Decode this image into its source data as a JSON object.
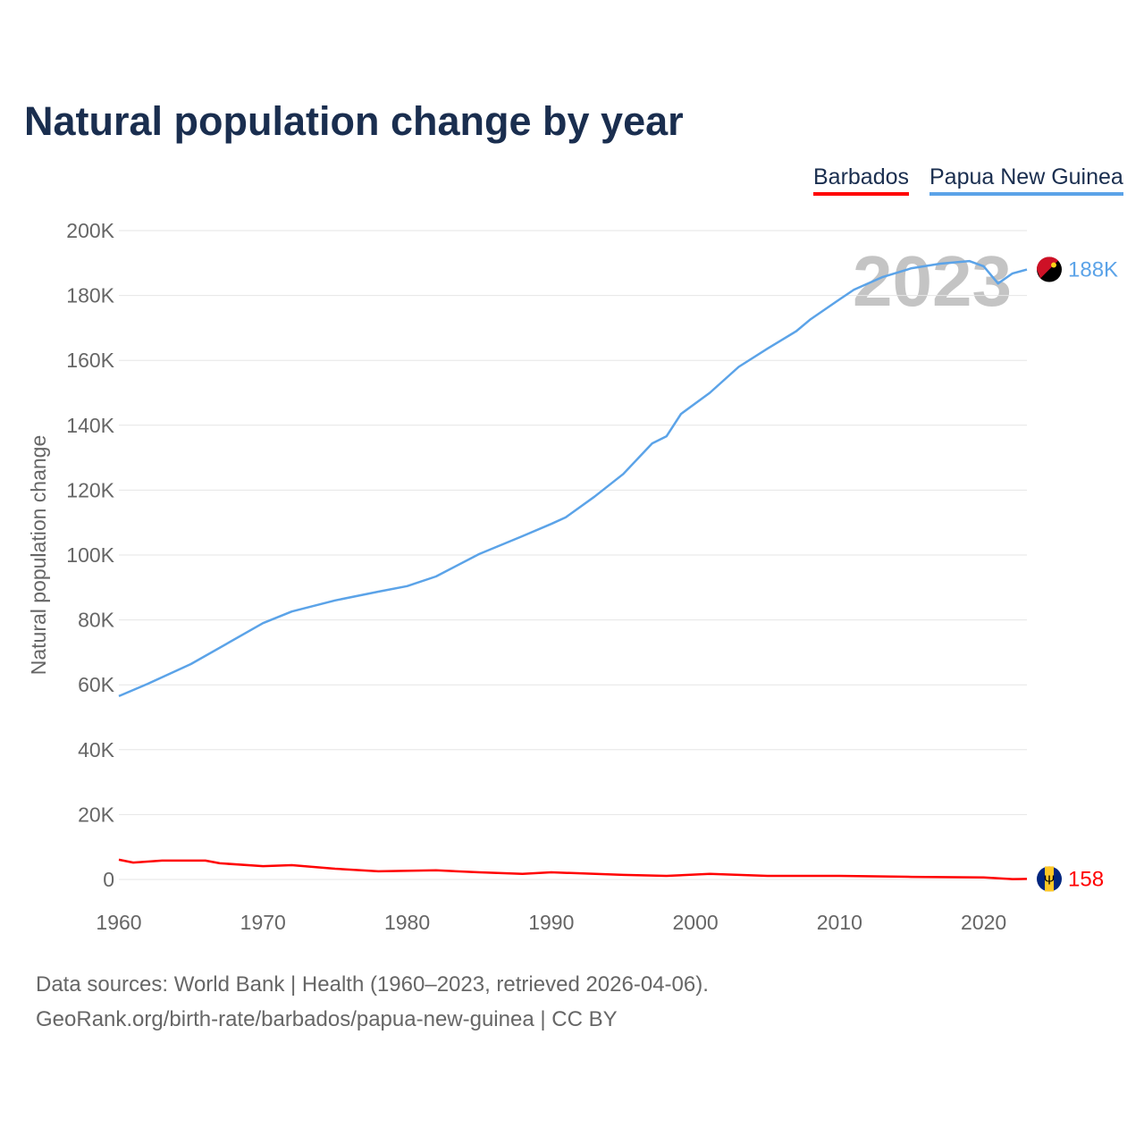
{
  "chart_data": {
    "type": "line",
    "title": "Natural population change by year",
    "ylabel": "Natural population change",
    "xlabel": "",
    "xlim": [
      1960,
      2023
    ],
    "ylim": [
      0,
      200000
    ],
    "x_ticks": [
      "1960",
      "1970",
      "1980",
      "1990",
      "2000",
      "2010",
      "2020"
    ],
    "y_ticks": [
      "0",
      "20K",
      "40K",
      "60K",
      "80K",
      "100K",
      "120K",
      "140K",
      "160K",
      "180K",
      "200K"
    ],
    "grid": true,
    "legend_position": "top-right",
    "year_watermark": "2023",
    "series": [
      {
        "name": "Barbados",
        "color": "#ff0000",
        "end_label": "158",
        "points": [
          [
            1960,
            6100
          ],
          [
            1961,
            5200
          ],
          [
            1963,
            5800
          ],
          [
            1966,
            5800
          ],
          [
            1967,
            5000
          ],
          [
            1970,
            4100
          ],
          [
            1972,
            4400
          ],
          [
            1975,
            3300
          ],
          [
            1978,
            2500
          ],
          [
            1982,
            2800
          ],
          [
            1985,
            2200
          ],
          [
            1988,
            1700
          ],
          [
            1990,
            2200
          ],
          [
            1995,
            1400
          ],
          [
            1998,
            1100
          ],
          [
            2001,
            1700
          ],
          [
            2005,
            1100
          ],
          [
            2010,
            1100
          ],
          [
            2015,
            800
          ],
          [
            2020,
            600
          ],
          [
            2022,
            100
          ],
          [
            2023,
            158
          ]
        ]
      },
      {
        "name": "Papua New Guinea",
        "color": "#5ba3e8",
        "end_label": "188K",
        "points": [
          [
            1960,
            56500
          ],
          [
            1962,
            60300
          ],
          [
            1965,
            66400
          ],
          [
            1970,
            79000
          ],
          [
            1972,
            82600
          ],
          [
            1975,
            86000
          ],
          [
            1978,
            88700
          ],
          [
            1980,
            90400
          ],
          [
            1982,
            93400
          ],
          [
            1985,
            100300
          ],
          [
            1988,
            105800
          ],
          [
            1990,
            109600
          ],
          [
            1991,
            111600
          ],
          [
            1993,
            118000
          ],
          [
            1995,
            125000
          ],
          [
            1997,
            134400
          ],
          [
            1998,
            136600
          ],
          [
            1999,
            143500
          ],
          [
            2001,
            150000
          ],
          [
            2003,
            158000
          ],
          [
            2005,
            163600
          ],
          [
            2007,
            169000
          ],
          [
            2008,
            172700
          ],
          [
            2010,
            178800
          ],
          [
            2011,
            181800
          ],
          [
            2013,
            185700
          ],
          [
            2015,
            188400
          ],
          [
            2017,
            189800
          ],
          [
            2019,
            190600
          ],
          [
            2020,
            189000
          ],
          [
            2021,
            183700
          ],
          [
            2022,
            186800
          ],
          [
            2023,
            188000
          ]
        ]
      }
    ]
  },
  "footer": {
    "line1": "Data sources: World Bank | Health (1960–2023, retrieved 2026-04-06).",
    "line2": "GeoRank.org/birth-rate/barbados/papua-new-guinea | CC BY"
  }
}
